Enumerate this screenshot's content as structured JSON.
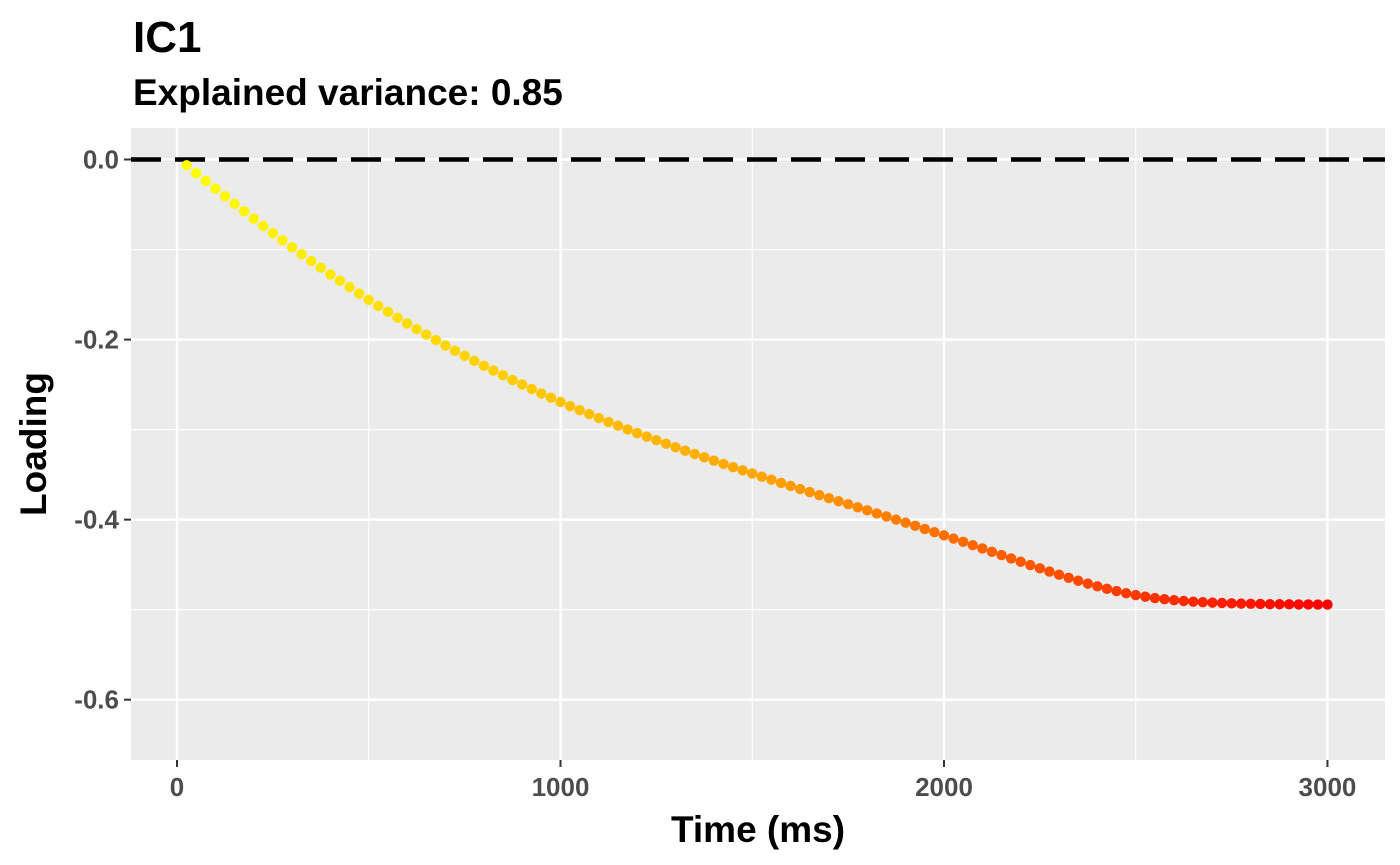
{
  "chart_data": {
    "type": "scatter",
    "title": "IC1",
    "subtitle": "Explained variance: 0.85",
    "xlabel": "Time (ms)",
    "ylabel": "Loading",
    "xlim": [
      -120,
      3150
    ],
    "ylim": [
      -0.667,
      0.035
    ],
    "x_ticks": [
      0,
      1000,
      2000,
      3000
    ],
    "x_tick_labels": [
      "0",
      "1000",
      "2000",
      "3000"
    ],
    "y_ticks": [
      0.0,
      -0.2,
      -0.4,
      -0.6
    ],
    "y_tick_labels": [
      "0.0",
      "-0.2",
      "-0.4",
      "-0.6"
    ],
    "reference_line": {
      "y": 0.0,
      "style": "dashed",
      "color": "#000000"
    },
    "grid": true,
    "legend": "none",
    "background_color": "#ebebeb",
    "grid_color": "#ffffff",
    "point_color_gradient": [
      "#ffff00",
      "#ffa500",
      "#ff0000"
    ],
    "series": [
      {
        "x": [
          25,
          50,
          75,
          100,
          125,
          150,
          175,
          200,
          225,
          250,
          275,
          300,
          325,
          350,
          375,
          400,
          425,
          450,
          475,
          500,
          525,
          550,
          575,
          600,
          625,
          650,
          675,
          700,
          725,
          750,
          775,
          800,
          825,
          850,
          875,
          900,
          925,
          950,
          975,
          1000,
          1025,
          1050,
          1075,
          1100,
          1125,
          1150,
          1175,
          1200,
          1225,
          1250,
          1275,
          1300,
          1325,
          1350,
          1375,
          1400,
          1425,
          1450,
          1475,
          1500,
          1525,
          1550,
          1575,
          1600,
          1625,
          1650,
          1675,
          1700,
          1725,
          1750,
          1775,
          1800,
          1825,
          1850,
          1875,
          1900,
          1925,
          1950,
          1975,
          2000,
          2025,
          2050,
          2075,
          2100,
          2125,
          2150,
          2175,
          2200,
          2225,
          2250,
          2275,
          2300,
          2325,
          2350,
          2375,
          2400,
          2425,
          2450,
          2475,
          2500,
          2525,
          2550,
          2575,
          2600,
          2625,
          2650,
          2675,
          2700,
          2725,
          2750,
          2775,
          2800,
          2825,
          2850,
          2875,
          2900,
          2925,
          2950,
          2975,
          3000
        ],
        "values": [
          -0.0064,
          -0.0152,
          -0.0238,
          -0.0323,
          -0.0408,
          -0.0492,
          -0.0575,
          -0.0657,
          -0.0738,
          -0.0818,
          -0.0897,
          -0.0975,
          -0.1052,
          -0.1128,
          -0.1202,
          -0.1276,
          -0.1348,
          -0.1419,
          -0.1489,
          -0.1558,
          -0.1626,
          -0.1692,
          -0.1757,
          -0.1821,
          -0.1884,
          -0.1945,
          -0.2006,
          -0.2065,
          -0.2123,
          -0.218,
          -0.2236,
          -0.2291,
          -0.2344,
          -0.2397,
          -0.2449,
          -0.2499,
          -0.2549,
          -0.2598,
          -0.2646,
          -0.2693,
          -0.2739,
          -0.2784,
          -0.2828,
          -0.2872,
          -0.2915,
          -0.2957,
          -0.2998,
          -0.3039,
          -0.3079,
          -0.3118,
          -0.3157,
          -0.3196,
          -0.3234,
          -0.3271,
          -0.3308,
          -0.3345,
          -0.3381,
          -0.3417,
          -0.3452,
          -0.3488,
          -0.3523,
          -0.3557,
          -0.3592,
          -0.3626,
          -0.366,
          -0.3694,
          -0.3728,
          -0.3762,
          -0.3796,
          -0.3829,
          -0.3863,
          -0.3897,
          -0.3931,
          -0.3965,
          -0.4,
          -0.4034,
          -0.4069,
          -0.4104,
          -0.414,
          -0.4175,
          -0.4211,
          -0.4247,
          -0.4284,
          -0.432,
          -0.4357,
          -0.4394,
          -0.4431,
          -0.4468,
          -0.4505,
          -0.4541,
          -0.4577,
          -0.4612,
          -0.4646,
          -0.4679,
          -0.4711,
          -0.4741,
          -0.4769,
          -0.4794,
          -0.4817,
          -0.4838,
          -0.4856,
          -0.4871,
          -0.4884,
          -0.4895,
          -0.4904,
          -0.4911,
          -0.4917,
          -0.4922,
          -0.4926,
          -0.493,
          -0.4933,
          -0.4935,
          -0.4937,
          -0.4939,
          -0.494,
          -0.4941,
          -0.4942,
          -0.4942,
          -0.4943,
          -0.4943
        ]
      }
    ]
  }
}
